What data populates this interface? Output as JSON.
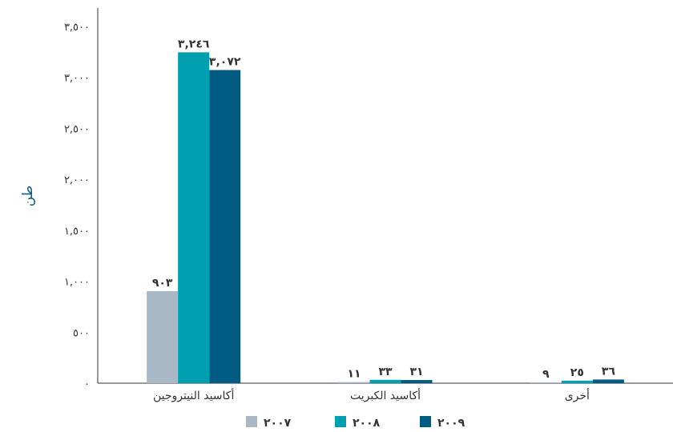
{
  "chart_data": {
    "type": "bar",
    "ylabel": "طن",
    "ylim": [
      0,
      3500
    ],
    "yticks": [
      {
        "value": 0,
        "label": "٠"
      },
      {
        "value": 500,
        "label": "٥٠٠"
      },
      {
        "value": 1000,
        "label": "١,٠٠٠"
      },
      {
        "value": 1500,
        "label": "١,٥٠٠"
      },
      {
        "value": 2000,
        "label": "٢,٠٠٠"
      },
      {
        "value": 2500,
        "label": "٢,٥٠٠"
      },
      {
        "value": 3000,
        "label": "٣,٠٠٠"
      },
      {
        "value": 3500,
        "label": "٣,٥٠٠"
      }
    ],
    "categories": [
      "أكاسيد النيتروجين",
      "أكاسيد الكبريت",
      "أخرى"
    ],
    "series": [
      {
        "name": "٢٠٠٧",
        "color": "#a8b8c5",
        "values": [
          903,
          11,
          9
        ],
        "labels": [
          "٩٠٣",
          "١١",
          "٩"
        ]
      },
      {
        "name": "٢٠٠٨",
        "color": "#00a0b0",
        "values": [
          3246,
          33,
          25
        ],
        "labels": [
          "٣,٢٤٦",
          "٣٣",
          "٢٥"
        ]
      },
      {
        "name": "٢٠٠٩",
        "color": "#005b82",
        "values": [
          3072,
          31,
          36
        ],
        "labels": [
          "٣,٠٧٢",
          "٣١",
          "٣٦"
        ]
      }
    ],
    "grid": false,
    "legend_position": "bottom"
  }
}
